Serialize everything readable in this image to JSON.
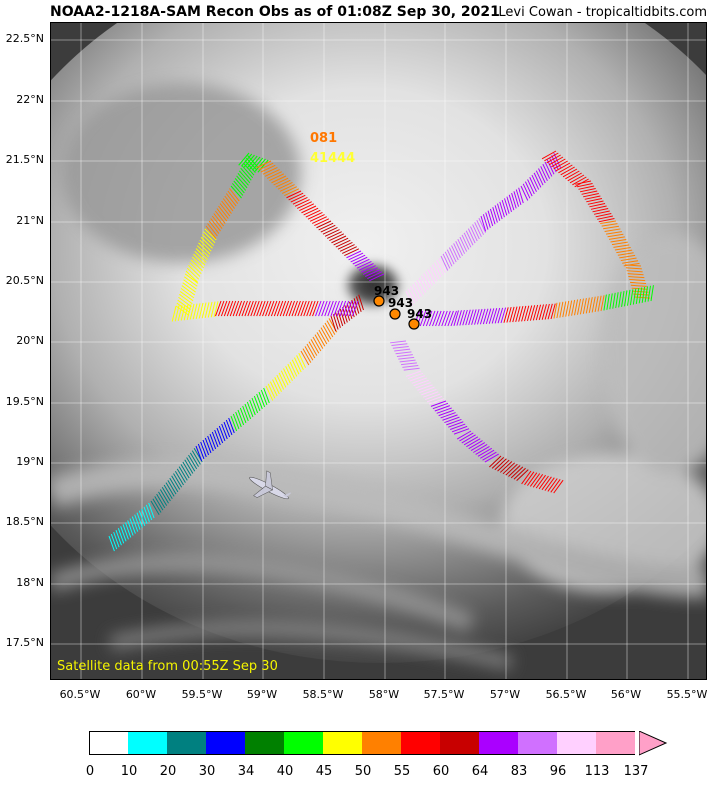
{
  "header": {
    "title": "NOAA2-1218A-SAM Recon Obs as of 01:08Z Sep 30, 2021",
    "credit": "Levi Cowan - tropicaltidbits.com"
  },
  "map": {
    "lat_labels": [
      "22.5°N",
      "22°N",
      "21.5°N",
      "21°N",
      "20.5°N",
      "20°N",
      "19.5°N",
      "19°N",
      "18.5°N",
      "18°N",
      "17.5°N"
    ],
    "lon_labels": [
      "60.5°W",
      "60°W",
      "59.5°W",
      "59°W",
      "58.5°W",
      "58°W",
      "57.5°W",
      "57°W",
      "56.5°W",
      "56°W",
      "55.5°W"
    ],
    "satellite_note": "Satellite data from 00:55Z Sep 30",
    "flight_labels": [
      {
        "text": "081",
        "color": "#ff7700"
      },
      {
        "text": "41444",
        "color": "#ffff33"
      }
    ],
    "pressure_obs": [
      "943",
      "943",
      "943"
    ],
    "marker_color": "#ff8800"
  },
  "colorbar": {
    "colors": [
      "#ffffff",
      "#00ffff",
      "#008080",
      "#0000ff",
      "#008000",
      "#00ff00",
      "#ffff00",
      "#ff8000",
      "#ff0000",
      "#c80000",
      "#aa00ff",
      "#d070ff",
      "#ffd0ff",
      "#ffa0c8"
    ],
    "ticks": [
      "0",
      "10",
      "20",
      "30",
      "34",
      "40",
      "45",
      "50",
      "55",
      "60",
      "64",
      "83",
      "96",
      "113",
      "137"
    ],
    "arrow_color": "#ffa0c8"
  }
}
